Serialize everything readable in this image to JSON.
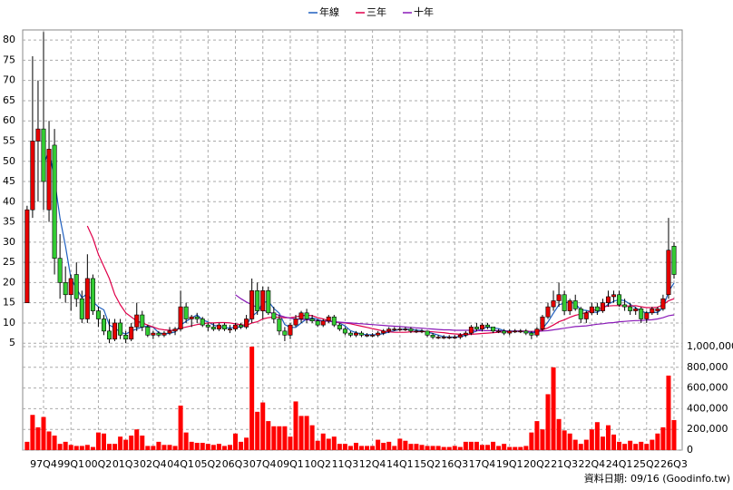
{
  "chart_data": {
    "type": "candlestick",
    "categories": [
      null,
      null,
      null,
      "97Q4",
      null,
      null,
      null,
      null,
      "99Q1",
      null,
      null,
      null,
      null,
      "00Q2",
      null,
      null,
      null,
      null,
      "01Q3",
      null,
      null,
      null,
      null,
      "02Q4",
      null,
      null,
      null,
      null,
      "04Q1",
      null,
      null,
      null,
      null,
      "05Q2",
      null,
      null,
      null,
      null,
      "06Q3",
      null,
      null,
      null,
      null,
      "07Q4",
      null,
      null,
      null,
      null,
      "09Q1",
      null,
      null,
      null,
      null,
      "10Q2",
      null,
      null,
      null,
      null,
      "11Q3",
      null,
      null,
      null,
      null,
      "12Q4",
      null,
      null,
      null,
      null,
      "14Q1",
      null,
      null,
      null,
      null,
      "15Q2",
      null,
      null,
      null,
      null,
      "16Q3",
      null,
      null,
      null,
      null,
      "17Q4",
      null,
      null,
      null,
      null,
      "19Q1",
      null,
      null,
      null,
      null,
      "20Q2",
      null,
      null,
      null,
      null,
      "21Q3",
      null,
      null,
      null,
      null,
      "22Q4",
      null,
      null,
      null,
      null,
      "24Q1",
      null,
      null,
      null,
      null,
      "25Q2",
      null,
      null,
      null,
      null,
      "26Q3"
    ],
    "ohlc": [
      [
        15,
        39,
        15,
        38
      ],
      [
        38,
        76,
        36,
        55
      ],
      [
        55,
        70,
        40,
        58
      ],
      [
        58,
        82,
        38,
        45
      ],
      [
        38,
        60,
        35,
        53
      ],
      [
        54,
        58,
        22,
        26
      ],
      [
        26,
        32,
        16,
        20
      ],
      [
        20,
        24,
        15,
        17
      ],
      [
        17,
        22,
        13,
        21
      ],
      [
        22,
        25,
        14,
        16
      ],
      [
        16,
        18,
        10,
        11
      ],
      [
        11,
        27,
        10,
        21
      ],
      [
        21,
        22,
        12,
        13
      ],
      [
        13,
        14,
        9,
        11
      ],
      [
        11,
        12,
        7,
        8
      ],
      [
        8,
        11,
        5,
        6
      ],
      [
        6,
        11,
        5.5,
        10
      ],
      [
        10,
        11,
        6,
        7
      ],
      [
        7,
        8,
        5,
        6
      ],
      [
        6,
        10,
        5.5,
        9
      ],
      [
        9,
        15,
        8,
        12
      ],
      [
        12,
        13,
        8,
        9
      ],
      [
        9,
        9.5,
        6.5,
        7
      ],
      [
        7,
        8,
        6,
        7.5
      ],
      [
        7.5,
        8,
        6.5,
        7
      ],
      [
        7,
        8,
        6.5,
        7.5
      ],
      [
        7.5,
        9,
        7,
        8
      ],
      [
        8,
        9,
        7,
        8.5
      ],
      [
        8.5,
        18,
        8,
        14
      ],
      [
        14,
        15,
        10,
        11
      ],
      [
        11,
        12,
        9,
        11.5
      ],
      [
        11.5,
        12.5,
        10,
        11
      ],
      [
        11,
        11.5,
        9,
        9.5
      ],
      [
        9.5,
        10,
        8,
        9
      ],
      [
        9,
        10,
        8,
        8.5
      ],
      [
        8.5,
        10,
        8,
        9.5
      ],
      [
        9.5,
        10,
        8,
        8.5
      ],
      [
        8.5,
        9.5,
        7.5,
        8.5
      ],
      [
        8.5,
        10,
        8,
        9.5
      ],
      [
        9.5,
        10,
        8.5,
        9
      ],
      [
        9,
        12,
        8.5,
        11
      ],
      [
        11,
        21,
        10,
        18
      ],
      [
        18,
        20,
        12,
        13
      ],
      [
        13,
        19,
        11,
        18
      ],
      [
        18,
        19,
        12,
        12.5
      ],
      [
        12.5,
        14,
        10,
        11
      ],
      [
        11,
        12,
        7,
        8
      ],
      [
        8,
        9,
        5.5,
        7
      ],
      [
        7,
        10,
        6,
        9.5
      ],
      [
        9.5,
        12,
        9,
        11
      ],
      [
        11,
        13,
        10,
        12.5
      ],
      [
        12.5,
        13.5,
        10,
        11
      ],
      [
        11,
        12,
        10,
        10.5
      ],
      [
        10.5,
        11,
        9,
        9.5
      ],
      [
        9.5,
        11,
        9,
        10.5
      ],
      [
        10.5,
        12,
        10,
        11.5
      ],
      [
        11.5,
        12,
        9,
        9.5
      ],
      [
        9.5,
        10,
        8,
        8.5
      ],
      [
        8.5,
        9,
        7,
        7.5
      ],
      [
        7.5,
        8,
        6.5,
        7
      ],
      [
        7,
        8,
        6.5,
        7.5
      ],
      [
        7.5,
        8,
        6.5,
        7
      ],
      [
        7,
        7.5,
        6.5,
        7
      ],
      [
        7,
        7.5,
        6.5,
        7
      ],
      [
        7,
        8,
        6.5,
        7.5
      ],
      [
        7.5,
        8.5,
        7,
        8
      ],
      [
        8,
        9,
        7.5,
        8.5
      ],
      [
        8.5,
        9,
        8,
        8.5
      ],
      [
        8.5,
        9,
        8,
        8.5
      ],
      [
        8.5,
        9,
        8,
        8.5
      ],
      [
        8.5,
        9,
        7.5,
        8
      ],
      [
        8,
        8.5,
        7.5,
        8
      ],
      [
        8,
        8.5,
        7.5,
        8
      ],
      [
        8,
        8,
        6.5,
        7
      ],
      [
        7,
        7.5,
        6,
        6.5
      ],
      [
        6.5,
        7,
        6,
        6.5
      ],
      [
        6.5,
        7,
        6,
        6.5
      ],
      [
        6.5,
        7,
        6,
        6.5
      ],
      [
        6.5,
        7,
        6,
        6.5
      ],
      [
        6.5,
        7.5,
        6,
        7
      ],
      [
        7,
        8,
        6.5,
        7.5
      ],
      [
        7.5,
        9.5,
        7,
        9
      ],
      [
        9,
        10,
        8,
        8.5
      ],
      [
        8.5,
        10,
        8,
        9.5
      ],
      [
        9.5,
        10,
        8.5,
        9
      ],
      [
        9,
        9,
        7.5,
        8
      ],
      [
        8,
        8.5,
        7.5,
        8
      ],
      [
        8,
        8.5,
        7,
        7.5
      ],
      [
        7.5,
        8.5,
        7,
        8
      ],
      [
        8,
        8.5,
        7.5,
        8
      ],
      [
        8,
        8.5,
        7.5,
        8
      ],
      [
        8,
        8.5,
        7,
        7.5
      ],
      [
        7.5,
        8,
        6,
        7
      ],
      [
        7,
        9,
        6.5,
        8.5
      ],
      [
        8.5,
        12,
        8,
        11.5
      ],
      [
        11.5,
        15,
        11,
        14
      ],
      [
        14,
        18,
        13,
        15.5
      ],
      [
        15.5,
        20,
        14,
        17
      ],
      [
        17,
        18,
        12,
        13
      ],
      [
        13,
        16,
        12,
        15.5
      ],
      [
        15.5,
        17,
        13,
        13.5
      ],
      [
        13.5,
        14,
        10,
        11
      ],
      [
        11,
        13,
        10,
        12.5
      ],
      [
        12.5,
        15,
        12,
        14
      ],
      [
        14,
        15,
        12,
        13
      ],
      [
        13,
        16,
        12.5,
        15
      ],
      [
        15,
        18,
        14,
        16.5
      ],
      [
        16.5,
        18,
        15,
        17
      ],
      [
        17,
        18,
        14,
        14.5
      ],
      [
        14.5,
        16,
        13,
        14
      ],
      [
        14,
        15,
        12,
        13
      ],
      [
        13,
        14,
        12,
        13.5
      ],
      [
        13.5,
        14,
        10,
        11
      ],
      [
        11,
        13,
        10,
        12.5
      ],
      [
        12.5,
        14,
        12,
        13.5
      ],
      [
        13,
        14,
        12,
        13.5
      ],
      [
        13.5,
        17,
        13,
        16
      ],
      [
        17,
        36,
        16,
        28
      ],
      [
        29,
        30,
        21,
        22
      ]
    ],
    "up_color": "#e60000",
    "down_color": "#33cc33",
    "series": [
      {
        "name": "年線",
        "color": "#1f5fbf",
        "values": [
          null,
          null,
          null,
          49,
          52.75,
          45.5,
          36,
          29,
          21,
          18.5,
          16.25,
          17.25,
          15.25,
          14,
          13.25,
          9.5,
          8.75,
          7.75,
          7.25,
          8,
          8.5,
          9,
          9.25,
          8.9,
          7.6,
          7.25,
          7.5,
          7.75,
          9.5,
          10.4,
          11.25,
          12,
          10.75,
          10.25,
          9.5,
          9.1,
          8.9,
          8.75,
          9,
          8.9,
          9.5,
          11.6,
          12.75,
          15,
          15.4,
          13.6,
          12.4,
          9.6,
          8.9,
          8.9,
          10,
          11,
          11.25,
          10.9,
          10.4,
          10.5,
          10.25,
          10,
          9.25,
          8.1,
          7.6,
          7.25,
          7.1,
          7.1,
          7.1,
          7.4,
          7.75,
          8.1,
          8.4,
          8.5,
          8.4,
          8.25,
          8.1,
          7.75,
          7.4,
          7,
          6.6,
          6.5,
          6.5,
          6.6,
          6.9,
          7.5,
          8,
          8.6,
          9,
          8.75,
          8.6,
          8.1,
          7.9,
          7.9,
          8,
          7.9,
          7.6,
          7.75,
          8.6,
          10.25,
          12.4,
          14.5,
          14.9,
          15.25,
          14.75,
          13.25,
          13.1,
          12.75,
          12.6,
          13.6,
          14.6,
          15.4,
          15.75,
          15.5,
          14.6,
          13.75,
          12.9,
          12.5,
          12.6,
          12.6,
          13.75,
          17.75,
          19.9
        ]
      },
      {
        "name": "三年",
        "color": "#e0004a",
        "values": [
          null,
          null,
          null,
          null,
          null,
          null,
          null,
          null,
          null,
          null,
          null,
          34,
          31,
          27,
          24,
          21,
          17,
          14.5,
          12.5,
          11.5,
          10.5,
          10,
          9.5,
          9,
          8.5,
          8.3,
          8.2,
          8.2,
          8.7,
          9,
          9.3,
          9.6,
          9.8,
          10,
          10,
          10.1,
          10.1,
          10,
          9.8,
          9.6,
          9.4,
          10,
          10.3,
          11,
          11.3,
          11.5,
          11.4,
          11.3,
          11.3,
          11.5,
          11.8,
          11.9,
          11.8,
          11.3,
          11,
          10.5,
          10.3,
          10.1,
          10,
          9.8,
          9.5,
          9.2,
          8.9,
          8.6,
          8.3,
          8,
          7.8,
          7.7,
          7.7,
          7.7,
          7.8,
          7.8,
          7.9,
          7.9,
          7.8,
          7.7,
          7.6,
          7.4,
          7.3,
          7.2,
          7.1,
          7.2,
          7.3,
          7.4,
          7.5,
          7.6,
          7.7,
          7.8,
          7.9,
          8,
          8,
          8,
          7.9,
          8,
          8.3,
          8.8,
          9.5,
          10.3,
          10.8,
          11.4,
          11.9,
          12.2,
          12.6,
          13,
          13.4,
          13.9,
          14.2,
          14.3,
          14.3,
          14.2,
          14.2,
          14.3,
          14,
          13.8,
          13.8,
          13.9,
          14.5,
          15.5,
          16
        ]
      },
      {
        "name": "十年",
        "color": "#8a1ab8",
        "values": [
          null,
          null,
          null,
          null,
          null,
          null,
          null,
          null,
          null,
          null,
          null,
          null,
          null,
          null,
          null,
          null,
          null,
          null,
          null,
          null,
          null,
          null,
          null,
          null,
          null,
          null,
          null,
          null,
          null,
          null,
          null,
          null,
          null,
          null,
          null,
          null,
          null,
          null,
          17,
          16,
          15.2,
          14.5,
          13.8,
          13.2,
          12.7,
          12.3,
          11.9,
          11.5,
          11.2,
          11,
          10.9,
          10.8,
          10.7,
          10.6,
          10.5,
          10.4,
          10.3,
          10.2,
          10.1,
          10,
          9.9,
          9.8,
          9.7,
          9.6,
          9.5,
          9.4,
          9.3,
          9.2,
          9.1,
          9,
          8.9,
          8.8,
          8.7,
          8.6,
          8.5,
          8.4,
          8.3,
          8.3,
          8.2,
          8.2,
          8.2,
          8.2,
          8.1,
          8.1,
          8.1,
          8.1,
          8.1,
          8,
          8,
          8,
          8,
          7.9,
          7.9,
          7.9,
          8,
          8.1,
          8.3,
          8.5,
          8.7,
          8.9,
          9.1,
          9.2,
          9.3,
          9.5,
          9.7,
          9.8,
          10,
          10.1,
          10.3,
          10.4,
          10.5,
          10.6,
          10.6,
          10.7,
          10.8,
          11,
          11.3,
          11.8,
          12
        ]
      }
    ],
    "volume": {
      "color": "#ff0000",
      "values": [
        80000,
        340000,
        220000,
        320000,
        180000,
        140000,
        60000,
        80000,
        50000,
        40000,
        40000,
        50000,
        30000,
        170000,
        160000,
        60000,
        60000,
        130000,
        100000,
        140000,
        200000,
        140000,
        40000,
        40000,
        80000,
        50000,
        50000,
        40000,
        430000,
        170000,
        80000,
        70000,
        70000,
        60000,
        50000,
        60000,
        40000,
        50000,
        160000,
        80000,
        120000,
        1000000,
        370000,
        460000,
        280000,
        230000,
        230000,
        230000,
        130000,
        470000,
        330000,
        330000,
        240000,
        90000,
        160000,
        110000,
        130000,
        60000,
        60000,
        40000,
        70000,
        40000,
        40000,
        40000,
        100000,
        70000,
        80000,
        40000,
        110000,
        90000,
        60000,
        60000,
        50000,
        40000,
        40000,
        40000,
        30000,
        30000,
        40000,
        30000,
        80000,
        80000,
        80000,
        50000,
        50000,
        80000,
        40000,
        60000,
        30000,
        30000,
        30000,
        40000,
        170000,
        280000,
        200000,
        540000,
        800000,
        300000,
        190000,
        160000,
        100000,
        60000,
        100000,
        200000,
        270000,
        130000,
        240000,
        150000,
        80000,
        60000,
        90000,
        60000,
        80000,
        60000,
        100000,
        160000,
        220000,
        720000,
        290000
      ]
    },
    "ylim": [
      3.7,
      82.5
    ],
    "yticks": [
      5,
      10,
      15,
      20,
      25,
      30,
      35,
      40,
      45,
      50,
      55,
      60,
      65,
      70,
      75,
      80
    ],
    "y2lim": [
      0,
      1000000
    ],
    "y2ticks": [
      {
        "value": 1000000,
        "label": "1,000,000"
      },
      {
        "value": 800000,
        "label": "800,000"
      },
      {
        "value": 600000,
        "label": "600,000"
      },
      {
        "value": 400000,
        "label": "400,000"
      },
      {
        "value": 200000,
        "label": "200,000"
      },
      0
    ],
    "grid": true,
    "source": "資料日期: 09/16  (Goodinfo.tw)"
  }
}
